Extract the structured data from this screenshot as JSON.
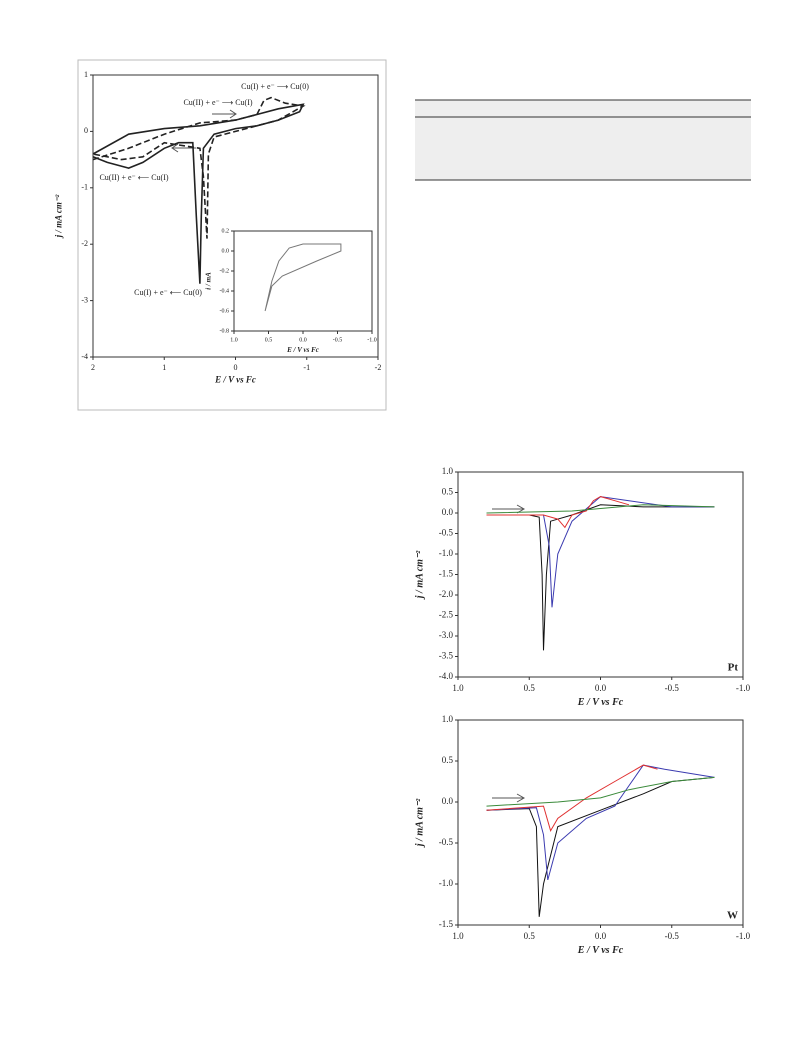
{
  "chart_data": [
    {
      "type": "line",
      "xlabel": "E / V vs Fc",
      "ylabel": "j / mA cm⁻²",
      "xlim": [
        2,
        -2
      ],
      "xticks": [
        2,
        1,
        0,
        -1,
        -2
      ],
      "ylim": [
        -4,
        1
      ],
      "yticks": [
        1,
        0,
        -1,
        -2,
        -3,
        -4
      ],
      "annotations": [
        "Cu(I) + e⁻ ⟶ Cu(0)",
        "Cu(II) + e⁻ ⟶ Cu(I)",
        "Cu(II) + e⁻ ⟵ Cu(I)",
        "Cu(I) + e⁻ ⟵ Cu(0)"
      ],
      "series": [
        {
          "color": "#222",
          "style": "solid",
          "x": [
            2,
            1.5,
            1.0,
            0.5,
            0.0,
            -0.3,
            -0.6,
            -0.95,
            -0.9,
            -0.6,
            -0.3,
            0.0,
            0.3,
            0.45,
            0.48,
            0.5,
            0.55,
            0.6,
            0.8,
            1.0,
            1.3,
            1.5,
            1.8,
            2
          ],
          "values": [
            -0.4,
            -0.05,
            0.05,
            0.1,
            0.2,
            0.3,
            0.4,
            0.48,
            0.35,
            0.2,
            0.1,
            0.05,
            -0.05,
            -0.3,
            -1.5,
            -2.7,
            -1.5,
            -0.2,
            -0.2,
            -0.3,
            -0.55,
            -0.65,
            -0.55,
            -0.45
          ]
        },
        {
          "color": "#222",
          "style": "dashed",
          "x": [
            2,
            1.5,
            1.0,
            0.5,
            0,
            -0.3,
            -0.4,
            -0.5,
            -0.7,
            -0.95,
            -0.6,
            0,
            0.3,
            0.38,
            0.4,
            0.45,
            0.5,
            1,
            1.3,
            1.6,
            2
          ],
          "values": [
            -0.5,
            -0.3,
            -0.05,
            0.15,
            0.2,
            0.3,
            0.55,
            0.6,
            0.5,
            0.45,
            0.2,
            0,
            -0.1,
            -0.4,
            -1.9,
            -0.8,
            -0.3,
            -0.2,
            -0.45,
            -0.5,
            -0.4
          ]
        }
      ]
    },
    {
      "type": "line",
      "xlabel": "E / V vs Fc",
      "ylabel": "i / mA",
      "xlim": [
        1,
        -1
      ],
      "xticks": [
        {
          "value": 1,
          "label": "1.0"
        },
        0.5,
        {
          "value": 0,
          "label": "0.0"
        },
        -0.5,
        {
          "value": -1,
          "label": "-1.0"
        }
      ],
      "ylim": [
        -0.8,
        0.2
      ],
      "yticks": [
        0.2,
        {
          "value": 0,
          "label": "0.0"
        },
        -0.2,
        -0.4,
        -0.6,
        -0.8
      ],
      "series": [
        {
          "color": "#777",
          "style": "solid",
          "x": [
            0.55,
            0.45,
            0.35,
            0.2,
            0.0,
            -0.55,
            -0.55,
            -0.2,
            0.3,
            0.45,
            0.55
          ],
          "values": [
            -0.6,
            -0.3,
            -0.1,
            0.03,
            0.07,
            0.07,
            0.0,
            -0.1,
            -0.25,
            -0.35,
            -0.6
          ]
        }
      ]
    },
    {
      "type": "line",
      "xlabel": "E / V vs Fc",
      "ylabel": "j / mA cm⁻²",
      "annotations": [
        "Pt"
      ],
      "xlim": [
        1,
        -1
      ],
      "xticks": [
        {
          "value": 1,
          "label": "1.0"
        },
        0.5,
        {
          "value": 0,
          "label": "0.0"
        },
        -0.5,
        {
          "value": -1,
          "label": "-1.0"
        }
      ],
      "ylim": [
        -4,
        1
      ],
      "yticks": [
        {
          "value": 1,
          "label": "1.0"
        },
        0.5,
        {
          "value": 0,
          "label": "0.0"
        },
        -0.5,
        {
          "value": -1,
          "label": "-1.0"
        },
        -1.5,
        {
          "value": -2,
          "label": "-2.0"
        },
        -2.5,
        {
          "value": -3,
          "label": "-3.0"
        },
        -3.5,
        {
          "value": -4,
          "label": "-4.0"
        }
      ],
      "series": [
        {
          "color": "#111",
          "style": "solid",
          "x": [
            0.8,
            0.5,
            0.43,
            0.41,
            0.4,
            0.38,
            0.35,
            0.2,
            0,
            -0.3,
            -0.8
          ],
          "values": [
            -0.05,
            -0.05,
            -0.1,
            -1.5,
            -3.35,
            -1.5,
            -0.2,
            -0.05,
            0.2,
            0.15,
            0.15
          ]
        },
        {
          "color": "#3b3bb0",
          "style": "solid",
          "x": [
            0.8,
            0.4,
            0.36,
            0.34,
            0.3,
            0.2,
            0.0,
            -0.2,
            -0.5,
            -0.8
          ],
          "values": [
            -0.05,
            -0.05,
            -0.8,
            -2.3,
            -1.0,
            -0.2,
            0.4,
            0.3,
            0.15,
            0.15
          ]
        },
        {
          "color": "#e03030",
          "style": "solid",
          "x": [
            0.8,
            0.4,
            0.3,
            0.25,
            0.2,
            0.1,
            0.05,
            0,
            -0.1,
            -0.2
          ],
          "values": [
            -0.05,
            -0.05,
            -0.15,
            -0.35,
            -0.05,
            0.05,
            0.3,
            0.4,
            0.3,
            0.2
          ]
        },
        {
          "color": "#3a8a3a",
          "style": "solid",
          "x": [
            0.8,
            0.2,
            -0.3,
            -0.8
          ],
          "values": [
            0.0,
            0.05,
            0.2,
            0.15
          ]
        }
      ]
    },
    {
      "type": "line",
      "xlabel": "E / V vs Fc",
      "ylabel": "j / mA cm⁻²",
      "annotations": [
        "W"
      ],
      "xlim": [
        1,
        -1
      ],
      "xticks": [
        {
          "value": 1,
          "label": "1.0"
        },
        0.5,
        {
          "value": 0,
          "label": "0.0"
        },
        -0.5,
        {
          "value": -1,
          "label": "-1.0"
        }
      ],
      "ylim": [
        -1.5,
        1
      ],
      "yticks": [
        {
          "value": 1,
          "label": "1.0"
        },
        0.5,
        {
          "value": 0,
          "label": "0.0"
        },
        -0.5,
        {
          "value": -1,
          "label": "-1.0"
        },
        -1.5
      ],
      "series": [
        {
          "color": "#111",
          "style": "solid",
          "x": [
            0.8,
            0.5,
            0.45,
            0.43,
            0.4,
            0.3,
            0,
            -0.3,
            -0.5,
            -0.8
          ],
          "values": [
            -0.1,
            -0.08,
            -0.3,
            -1.4,
            -1.0,
            -0.3,
            -0.1,
            0.1,
            0.25,
            0.3
          ]
        },
        {
          "color": "#3b3bb0",
          "style": "solid",
          "x": [
            0.8,
            0.45,
            0.4,
            0.37,
            0.3,
            0.1,
            -0.1,
            -0.2,
            -0.3,
            -0.45,
            -0.8
          ],
          "values": [
            -0.1,
            -0.07,
            -0.4,
            -0.95,
            -0.5,
            -0.2,
            -0.05,
            0.2,
            0.45,
            0.4,
            0.3
          ]
        },
        {
          "color": "#e03030",
          "style": "solid",
          "x": [
            0.8,
            0.4,
            0.35,
            0.3,
            0.1,
            -0.1,
            -0.3,
            -0.4
          ],
          "values": [
            -0.1,
            -0.05,
            -0.35,
            -0.2,
            0.05,
            0.25,
            0.45,
            0.4
          ]
        },
        {
          "color": "#3a8a3a",
          "style": "solid",
          "x": [
            0.8,
            0.3,
            0,
            -0.2,
            -0.5,
            -0.8
          ],
          "values": [
            -0.05,
            0.0,
            0.05,
            0.15,
            0.25,
            0.3
          ]
        }
      ]
    }
  ]
}
